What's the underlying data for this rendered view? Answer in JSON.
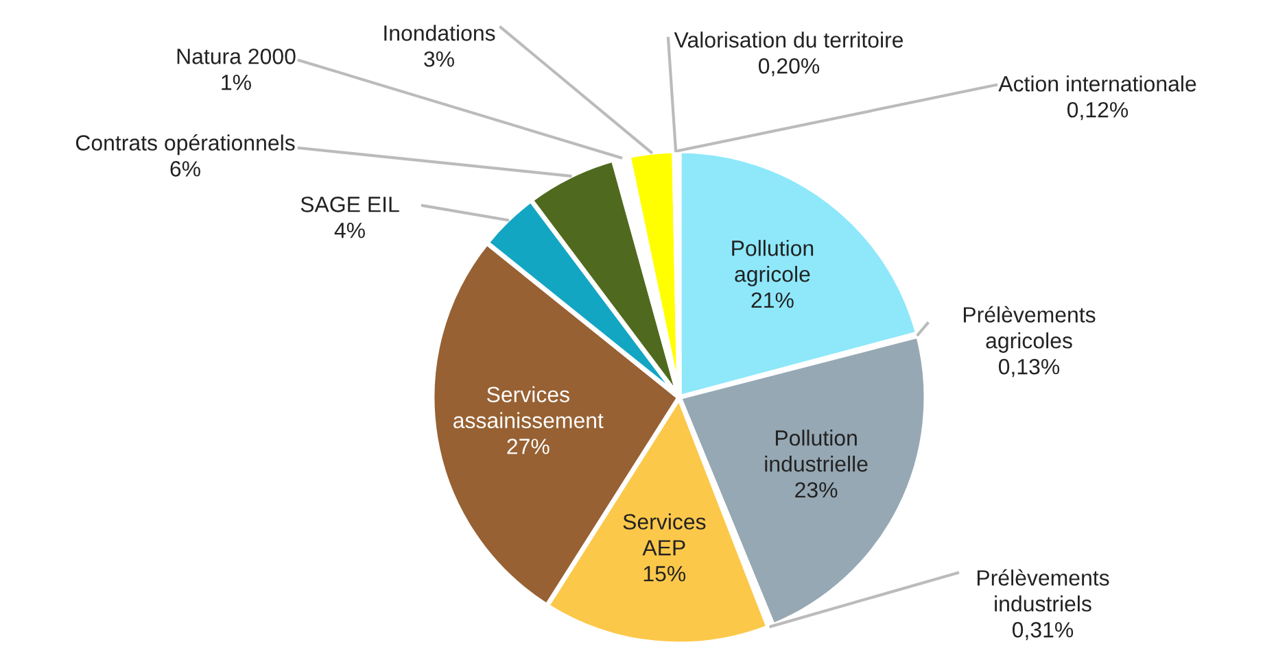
{
  "chart_data": {
    "type": "pie",
    "categories": [
      "Pollution agricole",
      "Prélèvements agricoles",
      "Pollution industrielle",
      "Prélèvements industriels",
      "Services AEP",
      "Services assainissement",
      "SAGE EIL",
      "Contrats opérationnels",
      "Natura 2000",
      "Inondations",
      "Valorisation du territoire",
      "Action internationale"
    ],
    "values": [
      21,
      0.13,
      23,
      0.31,
      15,
      27,
      4,
      6,
      1,
      3,
      0.2,
      0.12
    ],
    "value_labels": [
      "21%",
      "0,13%",
      "23%",
      "0,31%",
      "15%",
      "27%",
      "4%",
      "6%",
      "1%",
      "3%",
      "0,20%",
      "0,12%"
    ],
    "colors": [
      "#8ee8fa",
      "#c8d8e0",
      "#96a8b4",
      "#d0d0d0",
      "#fcc84a",
      "#976133",
      "#13a6c3",
      "#4f6a1e",
      "#ffffff",
      "#ffff00",
      "#e0e0a0",
      "#c0e0f0"
    ],
    "legend": false
  }
}
